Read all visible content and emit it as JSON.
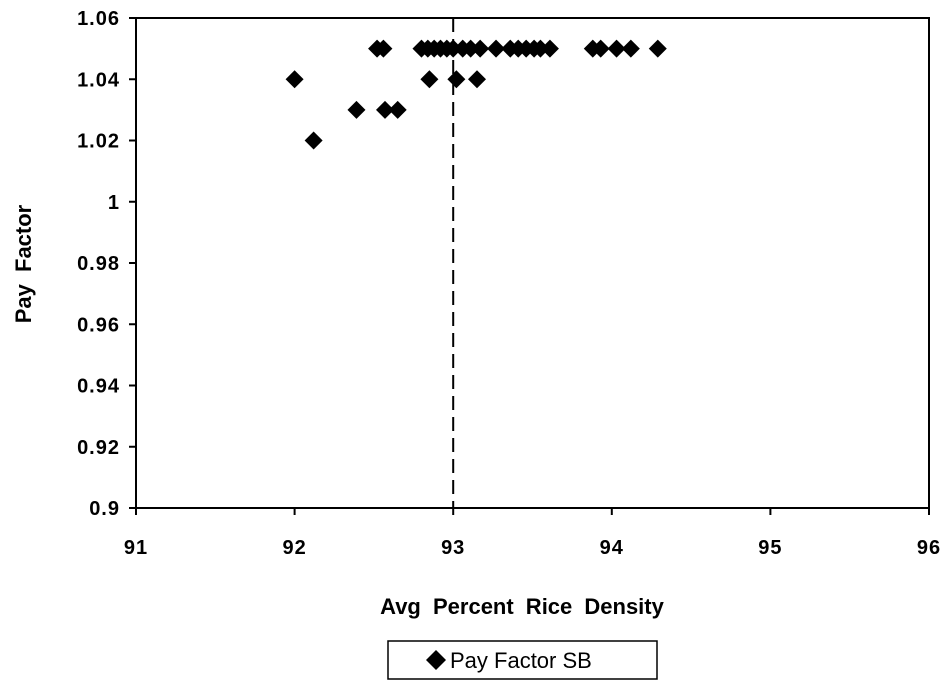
{
  "chart_data": {
    "type": "scatter",
    "title": "",
    "xlabel": "Avg Percent Rice Density",
    "ylabel": "Pay Factor",
    "xlim": [
      91,
      96
    ],
    "ylim": [
      0.9,
      1.06
    ],
    "x_ticks": [
      "91",
      "92",
      "93",
      "94",
      "95",
      "96"
    ],
    "y_ticks": [
      "0.9",
      "0.92",
      "0.94",
      "0.96",
      "0.98",
      "1",
      "1.02",
      "1.04",
      "1.06"
    ],
    "grid": false,
    "reference_line": {
      "axis": "x",
      "value": 93,
      "style": "dashed"
    },
    "marker": "diamond",
    "marker_color": "#000000",
    "legend_position": "bottom-center",
    "series": [
      {
        "name": "Pay Factor SB",
        "points": [
          [
            92.0,
            1.04
          ],
          [
            92.12,
            1.02
          ],
          [
            92.39,
            1.03
          ],
          [
            92.52,
            1.05
          ],
          [
            92.56,
            1.05
          ],
          [
            92.57,
            1.03
          ],
          [
            92.65,
            1.03
          ],
          [
            92.8,
            1.05
          ],
          [
            92.84,
            1.05
          ],
          [
            92.85,
            1.04
          ],
          [
            92.88,
            1.05
          ],
          [
            92.92,
            1.05
          ],
          [
            92.96,
            1.05
          ],
          [
            93.0,
            1.05
          ],
          [
            93.02,
            1.04
          ],
          [
            93.06,
            1.05
          ],
          [
            93.11,
            1.05
          ],
          [
            93.15,
            1.04
          ],
          [
            93.17,
            1.05
          ],
          [
            93.27,
            1.05
          ],
          [
            93.36,
            1.05
          ],
          [
            93.41,
            1.05
          ],
          [
            93.46,
            1.05
          ],
          [
            93.51,
            1.05
          ],
          [
            93.55,
            1.05
          ],
          [
            93.61,
            1.05
          ],
          [
            93.88,
            1.05
          ],
          [
            93.93,
            1.05
          ],
          [
            94.03,
            1.05
          ],
          [
            94.12,
            1.05
          ],
          [
            94.29,
            1.05
          ]
        ]
      }
    ]
  }
}
